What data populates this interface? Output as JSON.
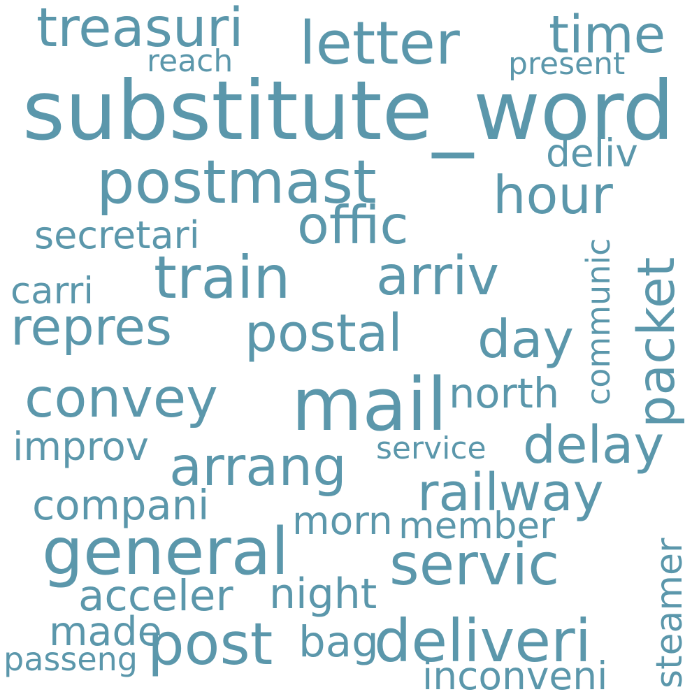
{
  "palette": {
    "word": "#5b97ab",
    "background": "#ffffff"
  },
  "words": [
    "treasuri",
    "letter",
    "time",
    "reach",
    "present",
    "substitute_word",
    "deliv",
    "postmast",
    "hour",
    "secretari",
    "offic",
    "communic",
    "packet",
    "carri",
    "train",
    "arriv",
    "repres",
    "postal",
    "day",
    "convey",
    "mail",
    "north",
    "improv",
    "service",
    "delay",
    "arrang",
    "railway",
    "compani",
    "morn",
    "member",
    "steamer",
    "general",
    "servic",
    "acceler",
    "night",
    "made",
    "post",
    "bag",
    "deliveri",
    "passeng",
    "inconveni"
  ]
}
